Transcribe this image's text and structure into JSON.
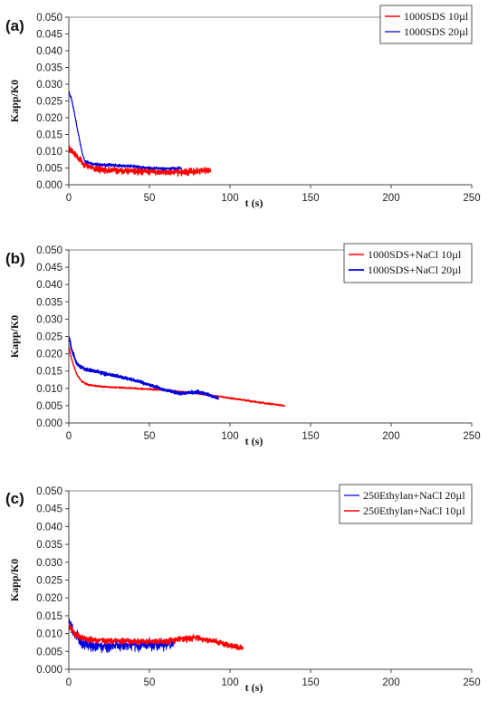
{
  "chart_data": [
    {
      "type": "line",
      "panel": "(a)",
      "xlabel": "t (s)",
      "ylabel": "Kapp/K0",
      "xlim": [
        0,
        250
      ],
      "ylim": [
        0,
        0.05
      ],
      "x_ticks": [
        "0",
        "50",
        "100",
        "150",
        "200",
        "250"
      ],
      "y_ticks": [
        "0.000",
        "0.005",
        "0.010",
        "0.015",
        "0.020",
        "0.025",
        "0.030",
        "0.035",
        "0.040",
        "0.045",
        "0.050"
      ],
      "grid": "horizontal-top",
      "legend": "top-right",
      "series": [
        {
          "name": "1000SDS 10µl",
          "color": "#ff0000",
          "width": 1.4,
          "x": [
            0,
            5,
            10,
            15,
            20,
            30,
            40,
            50,
            60,
            70,
            80,
            88
          ],
          "y": [
            0.011,
            0.0085,
            0.006,
            0.005,
            0.0045,
            0.0042,
            0.004,
            0.004,
            0.0038,
            0.0038,
            0.004,
            0.0042
          ],
          "noise": 0.0014
        },
        {
          "name": "1000SDS 20µl",
          "color": "#0000dd",
          "width": 1.2,
          "x": [
            0,
            2,
            4,
            6,
            8,
            10,
            15,
            20,
            30,
            40,
            50,
            60,
            70
          ],
          "y": [
            0.028,
            0.025,
            0.02,
            0.015,
            0.01,
            0.007,
            0.0062,
            0.006,
            0.0058,
            0.0055,
            0.005,
            0.0048,
            0.005
          ],
          "noise": 0.0006
        }
      ]
    },
    {
      "type": "line",
      "panel": "(b)",
      "xlabel": "t (s)",
      "ylabel": "Kapp/K0",
      "xlim": [
        0,
        250
      ],
      "ylim": [
        0,
        0.05
      ],
      "x_ticks": [
        "0",
        "50",
        "100",
        "150",
        "200",
        "250"
      ],
      "y_ticks": [
        "0.000",
        "0.005",
        "0.010",
        "0.015",
        "0.020",
        "0.025",
        "0.030",
        "0.035",
        "0.040",
        "0.045",
        "0.050"
      ],
      "grid": "horizontal-top",
      "legend": "top-right",
      "series": [
        {
          "name": "1000SDS+NaCl 10µl",
          "color": "#ff0000",
          "width": 1.4,
          "x": [
            0,
            2,
            5,
            8,
            12,
            20,
            40,
            60,
            80,
            100,
            120,
            134
          ],
          "y": [
            0.022,
            0.018,
            0.014,
            0.012,
            0.011,
            0.0105,
            0.01,
            0.0095,
            0.0085,
            0.0072,
            0.0058,
            0.005
          ],
          "noise": 0.0003
        },
        {
          "name": "1000SDS+NaCl 20µl",
          "color": "#0000dd",
          "width": 1.8,
          "x": [
            0,
            2,
            5,
            10,
            15,
            20,
            30,
            40,
            50,
            60,
            70,
            80,
            85,
            90,
            93
          ],
          "y": [
            0.025,
            0.021,
            0.017,
            0.0155,
            0.015,
            0.0145,
            0.0135,
            0.0125,
            0.011,
            0.0095,
            0.0085,
            0.009,
            0.0085,
            0.0075,
            0.007
          ],
          "noise": 0.0006
        }
      ]
    },
    {
      "type": "line",
      "panel": "(c)",
      "xlabel": "t (s)",
      "ylabel": "Kapp/K0",
      "xlim": [
        0,
        250
      ],
      "ylim": [
        0,
        0.05
      ],
      "x_ticks": [
        "0",
        "50",
        "100",
        "150",
        "200",
        "250"
      ],
      "y_ticks": [
        "0.000",
        "0.005",
        "0.010",
        "0.015",
        "0.020",
        "0.025",
        "0.030",
        "0.035",
        "0.040",
        "0.045",
        "0.050"
      ],
      "grid": "horizontal-top",
      "legend": "top-right",
      "series": [
        {
          "name": "250Ethylan+NaCl 20µl",
          "color": "#0000dd",
          "width": 1.0,
          "x": [
            0,
            3,
            8,
            15,
            25,
            35,
            45,
            55,
            65
          ],
          "y": [
            0.014,
            0.01,
            0.0075,
            0.0065,
            0.0065,
            0.0068,
            0.0068,
            0.007,
            0.0065
          ],
          "noise": 0.0022
        },
        {
          "name": "250Ethylan+NaCl 10µl",
          "color": "#ff0000",
          "width": 1.4,
          "x": [
            0,
            5,
            10,
            20,
            30,
            40,
            50,
            60,
            70,
            80,
            90,
            100,
            108
          ],
          "y": [
            0.012,
            0.0095,
            0.0085,
            0.008,
            0.008,
            0.0078,
            0.0078,
            0.0078,
            0.0085,
            0.0088,
            0.0078,
            0.0068,
            0.0058
          ],
          "noise": 0.0012
        }
      ]
    }
  ]
}
